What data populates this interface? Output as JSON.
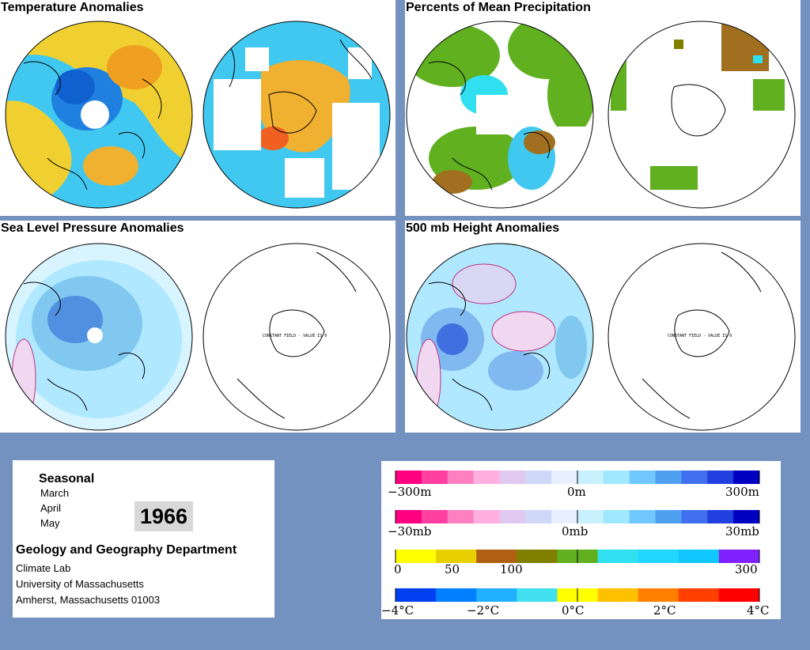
{
  "panels": {
    "temperature": {
      "title": "Temperature Anomalies"
    },
    "precipitation": {
      "title": "Percents of Mean Precipitation"
    },
    "slp": {
      "title": "Sea Level Pressure Anomalies",
      "constant_label": "CONSTANT FIELD - VALUE IS 0"
    },
    "height500": {
      "title": "500 mb Height Anomalies",
      "constant_label": "CONSTANT FIELD - VALUE IS 0"
    }
  },
  "info": {
    "period_type": "Seasonal",
    "months": [
      "March",
      "April",
      "May"
    ],
    "year": "1966",
    "department": "Geology and Geography Department",
    "lab": "Climate Lab",
    "university": "University of Massachusetts",
    "address": "Amherst, Massachusetts 01003"
  },
  "legends": {
    "height": {
      "labels": [
        "−300m",
        "0m",
        "300m"
      ],
      "colors": [
        "#ff0080",
        "#ff40a0",
        "#ff80c0",
        "#ffb0e0",
        "#e0c8f0",
        "#d0d8f8",
        "#e8f0ff",
        "#c8f0ff",
        "#a0e8ff",
        "#70c8ff",
        "#50a0f0",
        "#4070f0",
        "#2040e0",
        "#0000c0"
      ]
    },
    "pressure": {
      "labels": [
        "−30mb",
        "0mb",
        "30mb"
      ],
      "colors": [
        "#ff0080",
        "#ff40a0",
        "#ff80c0",
        "#ffb0e0",
        "#e0c8f0",
        "#d0d8f8",
        "#e8f0ff",
        "#c8f0ff",
        "#a0e8ff",
        "#70c8ff",
        "#50a0f0",
        "#4070f0",
        "#2040e0",
        "#0000c0"
      ]
    },
    "precip": {
      "labels": [
        "0",
        "50",
        "100",
        "300"
      ],
      "colors": [
        "#ffff00",
        "#e8d000",
        "#b06010",
        "#808000",
        "#60b020",
        "#30e0f0",
        "#20d8ff",
        "#10c8ff",
        "#8020ff"
      ]
    },
    "temp": {
      "labels": [
        "−4°C",
        "−2°C",
        "0°C",
        "2°C",
        "4°C"
      ],
      "colors": [
        "#0040f0",
        "#0080ff",
        "#20b0ff",
        "#40e0f0",
        "#ffff00",
        "#ffc000",
        "#ff8000",
        "#ff4000",
        "#ff0000"
      ]
    }
  }
}
